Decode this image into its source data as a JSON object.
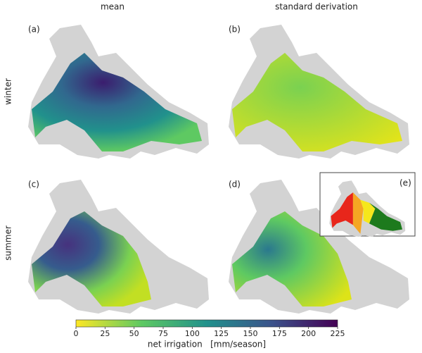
{
  "column_titles": [
    "mean",
    "standard derivation"
  ],
  "row_titles": [
    "winter",
    "summer"
  ],
  "panels": [
    "(a)",
    "(b)",
    "(c)",
    "(d)",
    "(e)"
  ],
  "colorbar": {
    "label": "net irrigation   [mm/season]",
    "lim": [
      0,
      225
    ],
    "ticks": [
      0,
      25,
      50,
      75,
      100,
      125,
      150,
      175,
      200,
      225
    ]
  }
}
